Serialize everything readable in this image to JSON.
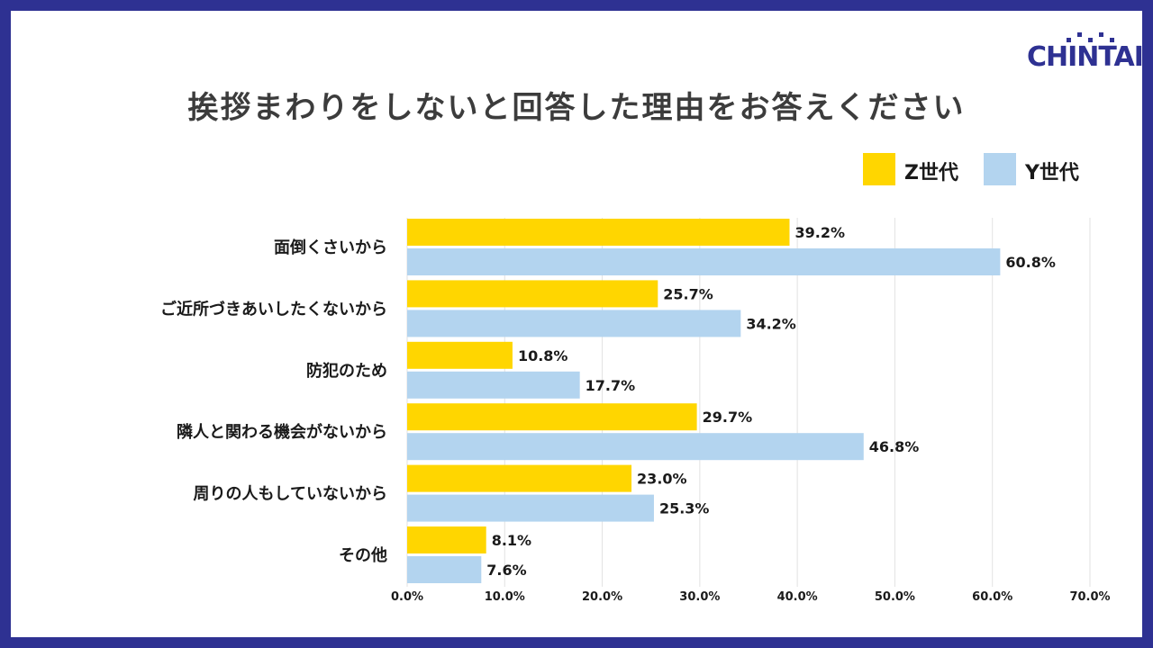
{
  "title": "挨拶まわりをしないと回答した理由をお答えください",
  "logo": {
    "text": "CHINTAI"
  },
  "colors": {
    "z": "#ffd600",
    "y": "#b3d4ef",
    "frame": "#2e3192",
    "grid": "#e2e2e2"
  },
  "chart_data": {
    "type": "bar",
    "orientation": "horizontal",
    "categories": [
      "面倒くさいから",
      "ご近所づきあいしたくないから",
      "防犯のため",
      "隣人と関わる機会がないから",
      "周りの人もしていないから",
      "その他"
    ],
    "series": [
      {
        "name": "Z世代",
        "values": [
          39.2,
          25.7,
          10.8,
          29.7,
          23.0,
          8.1
        ],
        "labels": [
          "39.2%",
          "25.7%",
          "10.8%",
          "29.7%",
          "23.0%",
          "8.1%"
        ]
      },
      {
        "name": "Y世代",
        "values": [
          60.8,
          34.2,
          17.7,
          46.8,
          25.3,
          7.6
        ],
        "labels": [
          "60.8%",
          "34.2%",
          "17.7%",
          "46.8%",
          "25.3%",
          "7.6%"
        ]
      }
    ],
    "xlim": [
      0,
      70
    ],
    "ticks": [
      0,
      10,
      20,
      30,
      40,
      50,
      60,
      70
    ],
    "tick_labels": [
      "0.0%",
      "10.0%",
      "20.0%",
      "30.0%",
      "40.0%",
      "50.0%",
      "60.0%",
      "70.0%"
    ],
    "grid": true,
    "legend": "top-right"
  }
}
